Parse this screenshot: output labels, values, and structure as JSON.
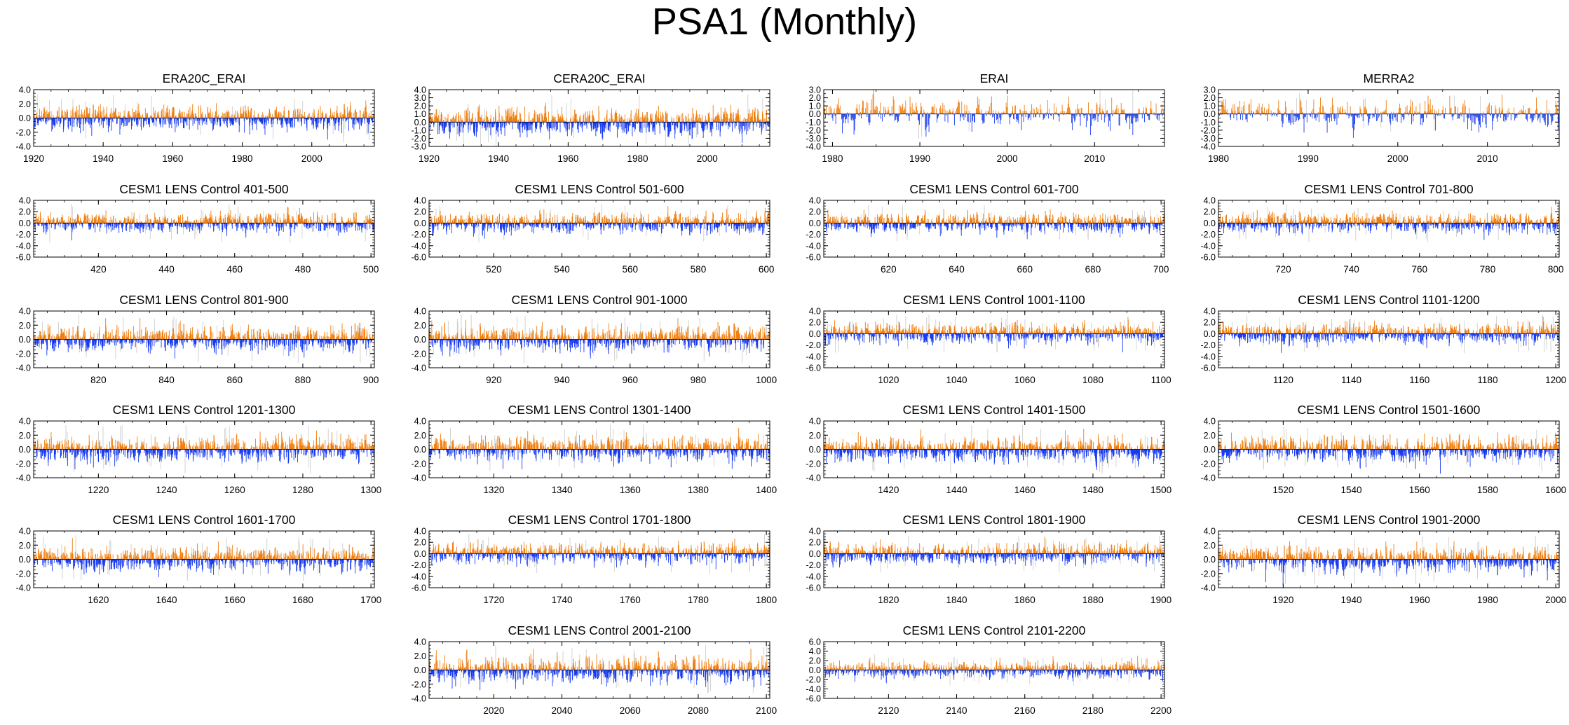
{
  "title": "PSA1 (Monthly)",
  "colors": {
    "positive": "#f07f10",
    "negative": "#1a3cf0",
    "faint": "#c8c8c8",
    "axis": "#000000"
  },
  "chart_data": [
    {
      "type": "bar",
      "title": "ERA20C_ERAI",
      "xlim": [
        1920,
        2018
      ],
      "ylim": [
        -4,
        4
      ],
      "yticks": [
        "4.0",
        "2.0",
        "0.0",
        "-2.0",
        "-4.0"
      ],
      "xticks": [
        "1920",
        "1940",
        "1960",
        "1980",
        "2000"
      ],
      "xtick_values": [
        1920,
        1940,
        1960,
        1980,
        2000
      ],
      "series": "monthly PSA1 index, orange above 0, blue below 0"
    },
    {
      "type": "bar",
      "title": "CERA20C_ERAI",
      "xlim": [
        1920,
        2018
      ],
      "ylim": [
        -3,
        4
      ],
      "yticks": [
        "4.0",
        "3.0",
        "2.0",
        "1.0",
        "0.0",
        "-1.0",
        "-2.0",
        "-3.0"
      ],
      "xticks": [
        "1920",
        "1940",
        "1960",
        "1980",
        "2000"
      ],
      "xtick_values": [
        1920,
        1940,
        1960,
        1980,
        2000
      ],
      "series": "monthly PSA1 index, orange above 0, blue below 0"
    },
    {
      "type": "bar",
      "title": "ERAI",
      "xlim": [
        1979,
        2018
      ],
      "ylim": [
        -4,
        3
      ],
      "yticks": [
        "3.0",
        "2.0",
        "1.0",
        "0.0",
        "-1.0",
        "-2.0",
        "-3.0",
        "-4.0"
      ],
      "xticks": [
        "1980",
        "1990",
        "2000",
        "2010"
      ],
      "xtick_values": [
        1980,
        1990,
        2000,
        2010
      ],
      "series": "monthly PSA1 index, orange above 0, blue below 0"
    },
    {
      "type": "bar",
      "title": "MERRA2",
      "xlim": [
        1980,
        2018
      ],
      "ylim": [
        -4,
        3
      ],
      "yticks": [
        "3.0",
        "2.0",
        "1.0",
        "0.0",
        "-1.0",
        "-2.0",
        "-3.0",
        "-4.0"
      ],
      "xticks": [
        "1980",
        "1990",
        "2000",
        "2010"
      ],
      "xtick_values": [
        1980,
        1990,
        2000,
        2010
      ],
      "series": "monthly PSA1 index, orange above 0, blue below 0"
    },
    {
      "type": "bar",
      "title": "CESM1 LENS Control 401-500",
      "xlim": [
        401,
        501
      ],
      "ylim": [
        -6,
        4
      ],
      "yticks": [
        "4.0",
        "2.0",
        "0.0",
        "-2.0",
        "-4.0",
        "-6.0"
      ],
      "xticks": [
        "420",
        "440",
        "460",
        "480",
        "500"
      ],
      "xtick_values": [
        420,
        440,
        460,
        480,
        500
      ],
      "series": "monthly PSA1 index, orange above 0, blue below 0"
    },
    {
      "type": "bar",
      "title": "CESM1 LENS Control 501-600",
      "xlim": [
        501,
        601
      ],
      "ylim": [
        -6,
        4
      ],
      "yticks": [
        "4.0",
        "2.0",
        "0.0",
        "-2.0",
        "-4.0",
        "-6.0"
      ],
      "xticks": [
        "520",
        "540",
        "560",
        "580",
        "600"
      ],
      "xtick_values": [
        520,
        540,
        560,
        580,
        600
      ],
      "series": "monthly PSA1 index, orange above 0, blue below 0"
    },
    {
      "type": "bar",
      "title": "CESM1 LENS Control 601-700",
      "xlim": [
        601,
        701
      ],
      "ylim": [
        -6,
        4
      ],
      "yticks": [
        "4.0",
        "2.0",
        "0.0",
        "-2.0",
        "-4.0",
        "-6.0"
      ],
      "xticks": [
        "620",
        "640",
        "660",
        "680",
        "700"
      ],
      "xtick_values": [
        620,
        640,
        660,
        680,
        700
      ],
      "series": "monthly PSA1 index, orange above 0, blue below 0"
    },
    {
      "type": "bar",
      "title": "CESM1 LENS Control 701-800",
      "xlim": [
        701,
        801
      ],
      "ylim": [
        -6,
        4
      ],
      "yticks": [
        "4.0",
        "2.0",
        "0.0",
        "-2.0",
        "-4.0",
        "-6.0"
      ],
      "xticks": [
        "720",
        "740",
        "760",
        "780",
        "800"
      ],
      "xtick_values": [
        720,
        740,
        760,
        780,
        800
      ],
      "series": "monthly PSA1 index, orange above 0, blue below 0"
    },
    {
      "type": "bar",
      "title": "CESM1 LENS Control 801-900",
      "xlim": [
        801,
        901
      ],
      "ylim": [
        -4,
        4
      ],
      "yticks": [
        "4.0",
        "2.0",
        "0.0",
        "-2.0",
        "-4.0"
      ],
      "xticks": [
        "820",
        "840",
        "860",
        "880",
        "900"
      ],
      "xtick_values": [
        820,
        840,
        860,
        880,
        900
      ],
      "series": "monthly PSA1 index, orange above 0, blue below 0"
    },
    {
      "type": "bar",
      "title": "CESM1 LENS Control 901-1000",
      "xlim": [
        901,
        1001
      ],
      "ylim": [
        -4,
        4
      ],
      "yticks": [
        "4.0",
        "2.0",
        "0.0",
        "-2.0",
        "-4.0"
      ],
      "xticks": [
        "920",
        "940",
        "960",
        "980",
        "1000"
      ],
      "xtick_values": [
        920,
        940,
        960,
        980,
        1000
      ],
      "series": "monthly PSA1 index, orange above 0, blue below 0"
    },
    {
      "type": "bar",
      "title": "CESM1 LENS Control 1001-1100",
      "xlim": [
        1001,
        1101
      ],
      "ylim": [
        -6,
        4
      ],
      "yticks": [
        "4.0",
        "2.0",
        "0.0",
        "-2.0",
        "-4.0",
        "-6.0"
      ],
      "xticks": [
        "1020",
        "1040",
        "1060",
        "1080",
        "1100"
      ],
      "xtick_values": [
        1020,
        1040,
        1060,
        1080,
        1100
      ],
      "series": "monthly PSA1 index, orange above 0, blue below 0"
    },
    {
      "type": "bar",
      "title": "CESM1 LENS Control 1101-1200",
      "xlim": [
        1101,
        1201
      ],
      "ylim": [
        -6,
        4
      ],
      "yticks": [
        "4.0",
        "2.0",
        "0.0",
        "-2.0",
        "-4.0",
        "-6.0"
      ],
      "xticks": [
        "1120",
        "1140",
        "1160",
        "1180",
        "1200"
      ],
      "xtick_values": [
        1120,
        1140,
        1160,
        1180,
        1200
      ],
      "series": "monthly PSA1 index, orange above 0, blue below 0"
    },
    {
      "type": "bar",
      "title": "CESM1 LENS Control 1201-1300",
      "xlim": [
        1201,
        1301
      ],
      "ylim": [
        -4,
        4
      ],
      "yticks": [
        "4.0",
        "2.0",
        "0.0",
        "-2.0",
        "-4.0"
      ],
      "xticks": [
        "1220",
        "1240",
        "1260",
        "1280",
        "1300"
      ],
      "xtick_values": [
        1220,
        1240,
        1260,
        1280,
        1300
      ],
      "series": "monthly PSA1 index, orange above 0, blue below 0"
    },
    {
      "type": "bar",
      "title": "CESM1 LENS Control 1301-1400",
      "xlim": [
        1301,
        1401
      ],
      "ylim": [
        -4,
        4
      ],
      "yticks": [
        "4.0",
        "2.0",
        "0.0",
        "-2.0",
        "-4.0"
      ],
      "xticks": [
        "1320",
        "1340",
        "1360",
        "1380",
        "1400"
      ],
      "xtick_values": [
        1320,
        1340,
        1360,
        1380,
        1400
      ],
      "series": "monthly PSA1 index, orange above 0, blue below 0"
    },
    {
      "type": "bar",
      "title": "CESM1 LENS Control 1401-1500",
      "xlim": [
        1401,
        1501
      ],
      "ylim": [
        -4,
        4
      ],
      "yticks": [
        "4.0",
        "2.0",
        "0.0",
        "-2.0",
        "-4.0"
      ],
      "xticks": [
        "1420",
        "1440",
        "1460",
        "1480",
        "1500"
      ],
      "xtick_values": [
        1420,
        1440,
        1460,
        1480,
        1500
      ],
      "series": "monthly PSA1 index, orange above 0, blue below 0"
    },
    {
      "type": "bar",
      "title": "CESM1 LENS Control 1501-1600",
      "xlim": [
        1501,
        1601
      ],
      "ylim": [
        -4,
        4
      ],
      "yticks": [
        "4.0",
        "2.0",
        "0.0",
        "-2.0",
        "-4.0"
      ],
      "xticks": [
        "1520",
        "1540",
        "1560",
        "1580",
        "1600"
      ],
      "xtick_values": [
        1520,
        1540,
        1560,
        1580,
        1600
      ],
      "series": "monthly PSA1 index, orange above 0, blue below 0"
    },
    {
      "type": "bar",
      "title": "CESM1 LENS Control 1601-1700",
      "xlim": [
        1601,
        1701
      ],
      "ylim": [
        -4,
        4
      ],
      "yticks": [
        "4.0",
        "2.0",
        "0.0",
        "-2.0",
        "-4.0"
      ],
      "xticks": [
        "1620",
        "1640",
        "1660",
        "1680",
        "1700"
      ],
      "xtick_values": [
        1620,
        1640,
        1660,
        1680,
        1700
      ],
      "series": "monthly PSA1 index, orange above 0, blue below 0"
    },
    {
      "type": "bar",
      "title": "CESM1 LENS Control 1701-1800",
      "xlim": [
        1701,
        1801
      ],
      "ylim": [
        -6,
        4
      ],
      "yticks": [
        "4.0",
        "2.0",
        "0.0",
        "-2.0",
        "-4.0",
        "-6.0"
      ],
      "xticks": [
        "1720",
        "1740",
        "1760",
        "1780",
        "1800"
      ],
      "xtick_values": [
        1720,
        1740,
        1760,
        1780,
        1800
      ],
      "series": "monthly PSA1 index, orange above 0, blue below 0"
    },
    {
      "type": "bar",
      "title": "CESM1 LENS Control 1801-1900",
      "xlim": [
        1801,
        1901
      ],
      "ylim": [
        -6,
        4
      ],
      "yticks": [
        "4.0",
        "2.0",
        "0.0",
        "-2.0",
        "-4.0",
        "-6.0"
      ],
      "xticks": [
        "1820",
        "1840",
        "1860",
        "1880",
        "1900"
      ],
      "xtick_values": [
        1820,
        1840,
        1860,
        1880,
        1900
      ],
      "series": "monthly PSA1 index, orange above 0, blue below 0"
    },
    {
      "type": "bar",
      "title": "CESM1 LENS Control 1901-2000",
      "xlim": [
        1901,
        2001
      ],
      "ylim": [
        -4,
        4
      ],
      "yticks": [
        "4.0",
        "2.0",
        "0.0",
        "-2.0",
        "-4.0"
      ],
      "xticks": [
        "1920",
        "1940",
        "1960",
        "1980",
        "2000"
      ],
      "xtick_values": [
        1920,
        1940,
        1960,
        1980,
        2000
      ],
      "series": "monthly PSA1 index, orange above 0, blue below 0"
    },
    {
      "type": "bar",
      "title": "CESM1 LENS Control 2001-2100",
      "xlim": [
        2001,
        2101
      ],
      "ylim": [
        -4,
        4
      ],
      "yticks": [
        "4.0",
        "2.0",
        "0.0",
        "-2.0",
        "-4.0"
      ],
      "xticks": [
        "2020",
        "2040",
        "2060",
        "2080",
        "2100"
      ],
      "xtick_values": [
        2020,
        2040,
        2060,
        2080,
        2100
      ],
      "series": "monthly PSA1 index, orange above 0, blue below 0"
    },
    {
      "type": "bar",
      "title": "CESM1 LENS Control 2101-2200",
      "xlim": [
        2101,
        2201
      ],
      "ylim": [
        -6,
        6
      ],
      "yticks": [
        "6.0",
        "4.0",
        "2.0",
        "0.0",
        "-2.0",
        "-4.0",
        "-6.0"
      ],
      "xticks": [
        "2120",
        "2140",
        "2160",
        "2180",
        "2200"
      ],
      "xtick_values": [
        2120,
        2140,
        2160,
        2180,
        2200
      ],
      "series": "monthly PSA1 index, orange above 0, blue below 0"
    }
  ]
}
